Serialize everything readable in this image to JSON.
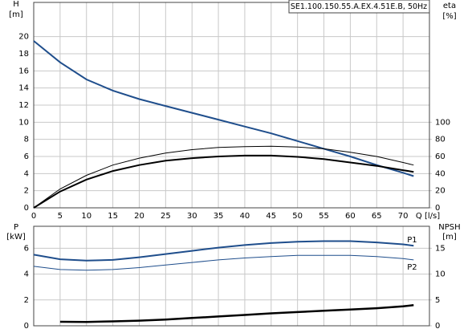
{
  "chart_data": [
    {
      "type": "line",
      "legend_text": "SE1.100.150.55.A.EX.4.51E.B, 50Hz",
      "y_label": "H",
      "y_unit": "[m]",
      "y2_label": "eta",
      "y2_unit": "[%]",
      "x_label": "Q [l/s]",
      "xlim": [
        0,
        75
      ],
      "xticks": [
        0,
        5,
        10,
        15,
        20,
        25,
        30,
        35,
        40,
        45,
        50,
        55,
        60,
        65,
        70
      ],
      "ylim": [
        0,
        24
      ],
      "yticks": [
        0,
        2,
        4,
        6,
        8,
        10,
        12,
        14,
        16,
        18,
        20
      ],
      "y2lim": [
        0,
        240
      ],
      "y2ticks": [
        0,
        20,
        40,
        60,
        80,
        100
      ],
      "grid": true,
      "x": [
        0,
        5,
        10,
        15,
        20,
        25,
        30,
        35,
        40,
        45,
        50,
        55,
        60,
        65,
        70,
        72
      ],
      "series": [
        {
          "color": "#1f4e8c",
          "values": [
            19.5,
            17,
            15,
            13.7,
            12.7,
            11.9,
            11.1,
            10.3,
            9.5,
            8.7,
            7.8,
            6.9,
            6,
            5,
            4.1,
            3.7
          ]
        },
        {
          "color": "#000000",
          "axis": "y2",
          "values": [
            0,
            22,
            38,
            50,
            58,
            64,
            68,
            70.5,
            71.5,
            72,
            71,
            69,
            65,
            60,
            53,
            50
          ]
        },
        {
          "color": "#000000",
          "axis": "y2",
          "values": [
            0,
            19,
            33,
            43,
            50,
            55,
            58,
            60,
            61,
            61,
            59.5,
            57,
            53,
            49,
            44,
            42
          ]
        }
      ]
    },
    {
      "type": "line",
      "y_label": "P",
      "y_unit": "[kW]",
      "y2_label": "NPSH",
      "y2_unit": "[m]",
      "xlim": [
        0,
        75
      ],
      "xticks": [
        0,
        5,
        10,
        15,
        20,
        25,
        30,
        35,
        40,
        45,
        50,
        55,
        60,
        65,
        70
      ],
      "ylim": [
        0,
        7.7
      ],
      "yticks": [
        0,
        2,
        4,
        6
      ],
      "y2lim": [
        0,
        19.25
      ],
      "y2ticks": [
        0,
        5,
        10,
        15
      ],
      "grid": true,
      "x": [
        0,
        5,
        10,
        15,
        20,
        25,
        30,
        35,
        40,
        45,
        50,
        55,
        60,
        65,
        70,
        72
      ],
      "series": [
        {
          "name": "P1",
          "color": "#1f4e8c",
          "values": [
            5.5,
            5.15,
            5.05,
            5.1,
            5.3,
            5.55,
            5.8,
            6.05,
            6.25,
            6.4,
            6.5,
            6.55,
            6.55,
            6.45,
            6.3,
            6.2
          ]
        },
        {
          "name": "P2",
          "color": "#1f4e8c",
          "values": [
            4.6,
            4.35,
            4.3,
            4.35,
            4.5,
            4.7,
            4.9,
            5.1,
            5.25,
            5.35,
            5.45,
            5.45,
            5.45,
            5.35,
            5.2,
            5.1
          ]
        },
        {
          "color": "#000000",
          "axis": "y2",
          "values": [
            null,
            0.77,
            0.75,
            0.85,
            1.0,
            1.2,
            1.5,
            1.8,
            2.1,
            2.4,
            2.65,
            2.9,
            3.15,
            3.4,
            3.75,
            4.0
          ]
        }
      ]
    }
  ]
}
